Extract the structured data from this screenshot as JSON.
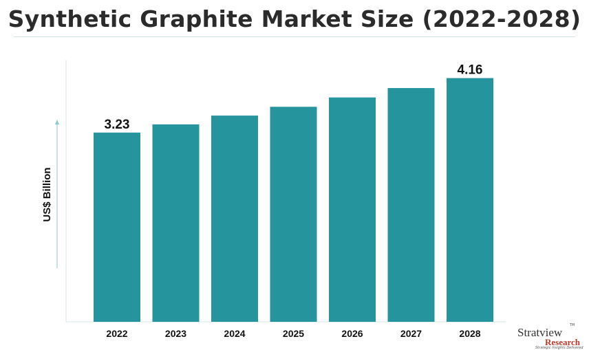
{
  "chart_data": {
    "type": "bar",
    "title": "Synthetic Graphite Market Size (2022-2028)",
    "ylabel": "US$ Billion",
    "xlabel": "",
    "categories": [
      "2022",
      "2023",
      "2024",
      "2025",
      "2026",
      "2027",
      "2028"
    ],
    "values": [
      3.23,
      3.37,
      3.52,
      3.67,
      3.83,
      3.99,
      4.16
    ],
    "data_labels": {
      "2022": "3.23",
      "2028": "4.16"
    },
    "ylim": [
      0,
      4.5
    ],
    "grid": false,
    "legend": "none",
    "colors": {
      "bar": "#26949c",
      "axis": "#cfe3e4",
      "arrow": "#8cc9cc",
      "title": "#2b2b2b"
    }
  },
  "logo": {
    "name": "Stratview",
    "sub": "Research",
    "tagline": "Strategic Insights Delivered",
    "tm": "TM"
  }
}
